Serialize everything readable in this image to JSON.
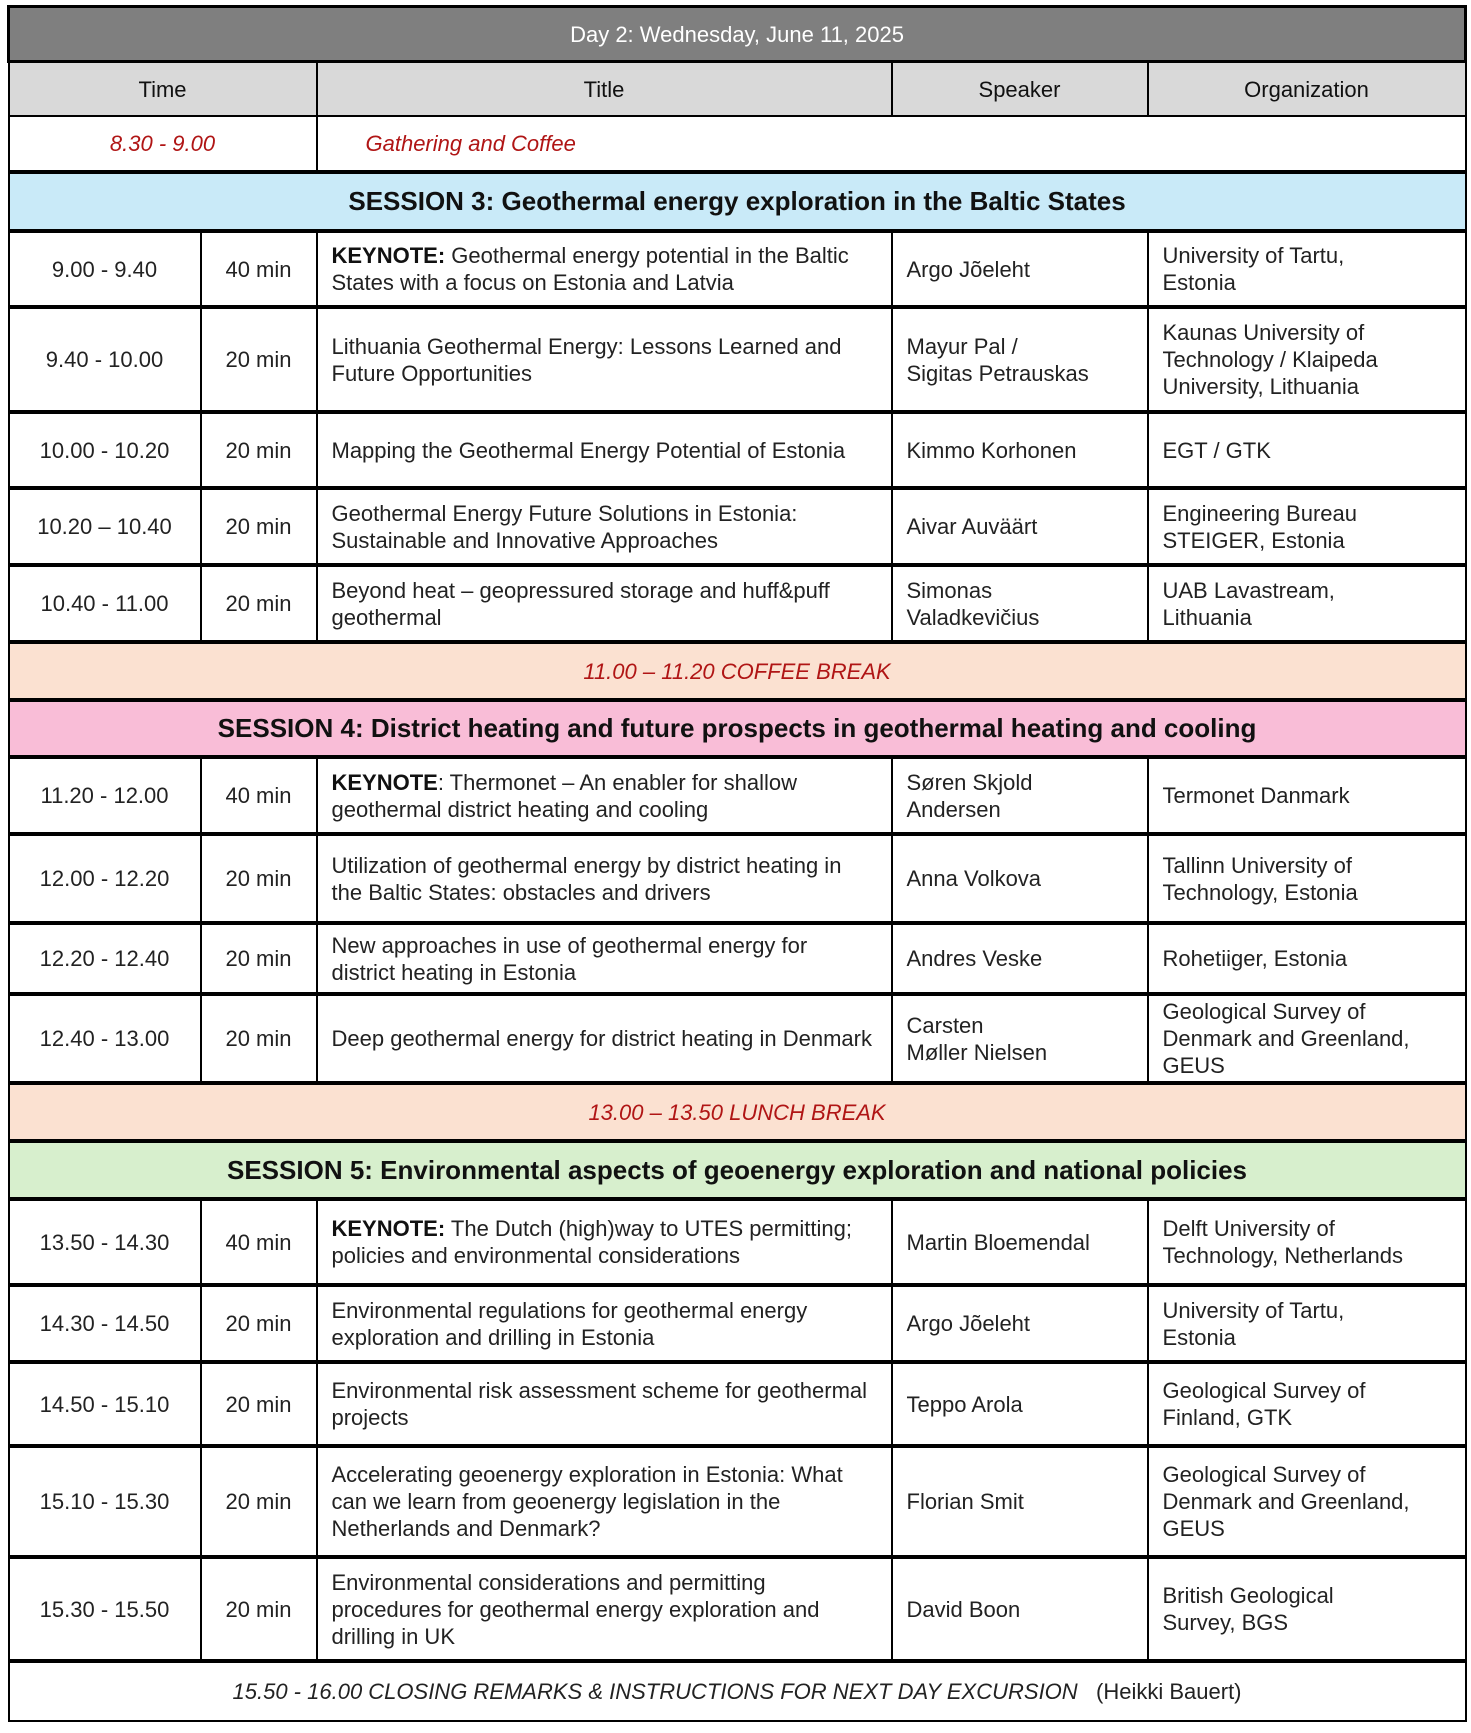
{
  "title": "Day 2: Wednesday, June 11, 2025",
  "headers": {
    "time": "Time",
    "title": "Title",
    "speaker": "Speaker",
    "organization": "Organization"
  },
  "colors": {
    "title_bar": "#7f7f7f",
    "header": "#d9d9d9",
    "session3": "#c9eaf8",
    "session4": "#f9bdd7",
    "session5": "#d7efcd",
    "break": "#fbe1d1",
    "accent_red": "#b01515"
  },
  "gathering": {
    "time": "8.30 - 9.00",
    "title": "Gathering and Coffee"
  },
  "blocks": [
    {
      "type": "session",
      "color": "#c9eaf8",
      "label": "SESSION 3: Geothermal energy exploration in the Baltic States"
    },
    {
      "type": "talk",
      "time": "9.00 - 9.40",
      "duration": "40 min",
      "prefix": "KEYNOTE:",
      "title": " Geothermal energy potential in the Baltic States with a focus on Estonia and Latvia",
      "speaker": "Argo Jõeleht",
      "org": "University of Tartu,\nEstonia"
    },
    {
      "type": "talk",
      "time": "9.40 - 10.00",
      "duration": "20 min",
      "title": "Lithuania Geothermal Energy: Lessons Learned and Future Opportunities",
      "speaker": "Mayur Pal /\nSigitas Petrauskas",
      "org": "Kaunas University of Technology / Klaipeda University, Lithuania"
    },
    {
      "type": "talk",
      "time": "10.00 - 10.20",
      "duration": "20 min",
      "title": "Mapping the Geothermal Energy Potential of Estonia",
      "speaker": "Kimmo Korhonen",
      "org": "EGT / GTK"
    },
    {
      "type": "talk",
      "time": "10.20 – 10.40",
      "duration": "20 min",
      "title": "Geothermal Energy Future Solutions in Estonia: Sustainable and Innovative Approaches",
      "speaker": "Aivar Auväärt",
      "org": "Engineering Bureau\nSTEIGER, Estonia"
    },
    {
      "type": "talk",
      "time": "10.40 - 11.00",
      "duration": "20 min",
      "title": "Beyond heat – geopressured storage and huff&puff geothermal",
      "speaker": "Simonas\nValadkevičius",
      "org": "UAB Lavastream,\nLithuania"
    },
    {
      "type": "break",
      "label": "11.00 – 11.20 COFFEE BREAK"
    },
    {
      "type": "session",
      "color": "#f9bdd7",
      "label": "SESSION 4: District heating and future prospects in geothermal heating and cooling"
    },
    {
      "type": "talk",
      "time": "11.20 - 12.00",
      "duration": "40 min",
      "prefix": "KEYNOTE",
      "title": ": Thermonet – An enabler for shallow geothermal district heating and cooling",
      "speaker": "Søren Skjold\nAndersen",
      "org": "Termonet Danmark"
    },
    {
      "type": "talk",
      "time": "12.00 - 12.20",
      "duration": "20 min",
      "title": "Utilization of geothermal energy by district heating in the Baltic States: obstacles and drivers",
      "speaker": "Anna Volkova",
      "org": "Tallinn University of\nTechnology, Estonia"
    },
    {
      "type": "talk",
      "time": "12.20 - 12.40",
      "duration": "20 min",
      "title": "New approaches in use of geothermal energy for district heating in Estonia",
      "speaker": "Andres Veske",
      "org": "Rohetiiger, Estonia"
    },
    {
      "type": "talk",
      "time": "12.40 - 13.00",
      "duration": "20 min",
      "title": "Deep geothermal energy for district heating in Denmark",
      "speaker": "Carsten\nMøller Nielsen",
      "org": "Geological Survey of Denmark and Greenland, GEUS"
    },
    {
      "type": "break",
      "label": "13.00 – 13.50 LUNCH BREAK"
    },
    {
      "type": "session",
      "color": "#d7efcd",
      "label": "SESSION 5: Environmental aspects of geoenergy exploration and national policies"
    },
    {
      "type": "talk",
      "time": "13.50 - 14.30",
      "duration": "40 min",
      "prefix": "KEYNOTE:",
      "title": " The Dutch (high)way to UTES permitting; policies and environmental considerations",
      "speaker": "Martin Bloemendal",
      "org": "Delft University of\nTechnology, Netherlands"
    },
    {
      "type": "talk",
      "time": "14.30 - 14.50",
      "duration": "20 min",
      "title": "Environmental regulations for geothermal energy exploration and drilling in Estonia",
      "speaker": "Argo Jõeleht",
      "org": "University of Tartu,\nEstonia"
    },
    {
      "type": "talk",
      "time": "14.50 - 15.10",
      "duration": "20 min",
      "title": "Environmental risk assessment scheme for geothermal projects",
      "speaker": "Teppo Arola",
      "org": "Geological Survey of\nFinland, GTK"
    },
    {
      "type": "talk",
      "time": "15.10 - 15.30",
      "duration": "20 min",
      "title": "Accelerating geoenergy exploration in Estonia: What can we learn from geoenergy legislation in the Netherlands and Denmark?",
      "speaker": "Florian Smit",
      "org": "Geological Survey of Denmark and Greenland, GEUS"
    },
    {
      "type": "talk",
      "time": "15.30 - 15.50",
      "duration": "20 min",
      "title": "Environmental considerations and permitting procedures for geothermal energy exploration and drilling in UK",
      "speaker": "David Boon",
      "org": "British Geological\nSurvey, BGS"
    }
  ],
  "closing": {
    "label": "15.50 - 16.00 CLOSING REMARKS & INSTRUCTIONS FOR NEXT DAY EXCURSION",
    "speaker": "(Heikki Bauert)"
  }
}
